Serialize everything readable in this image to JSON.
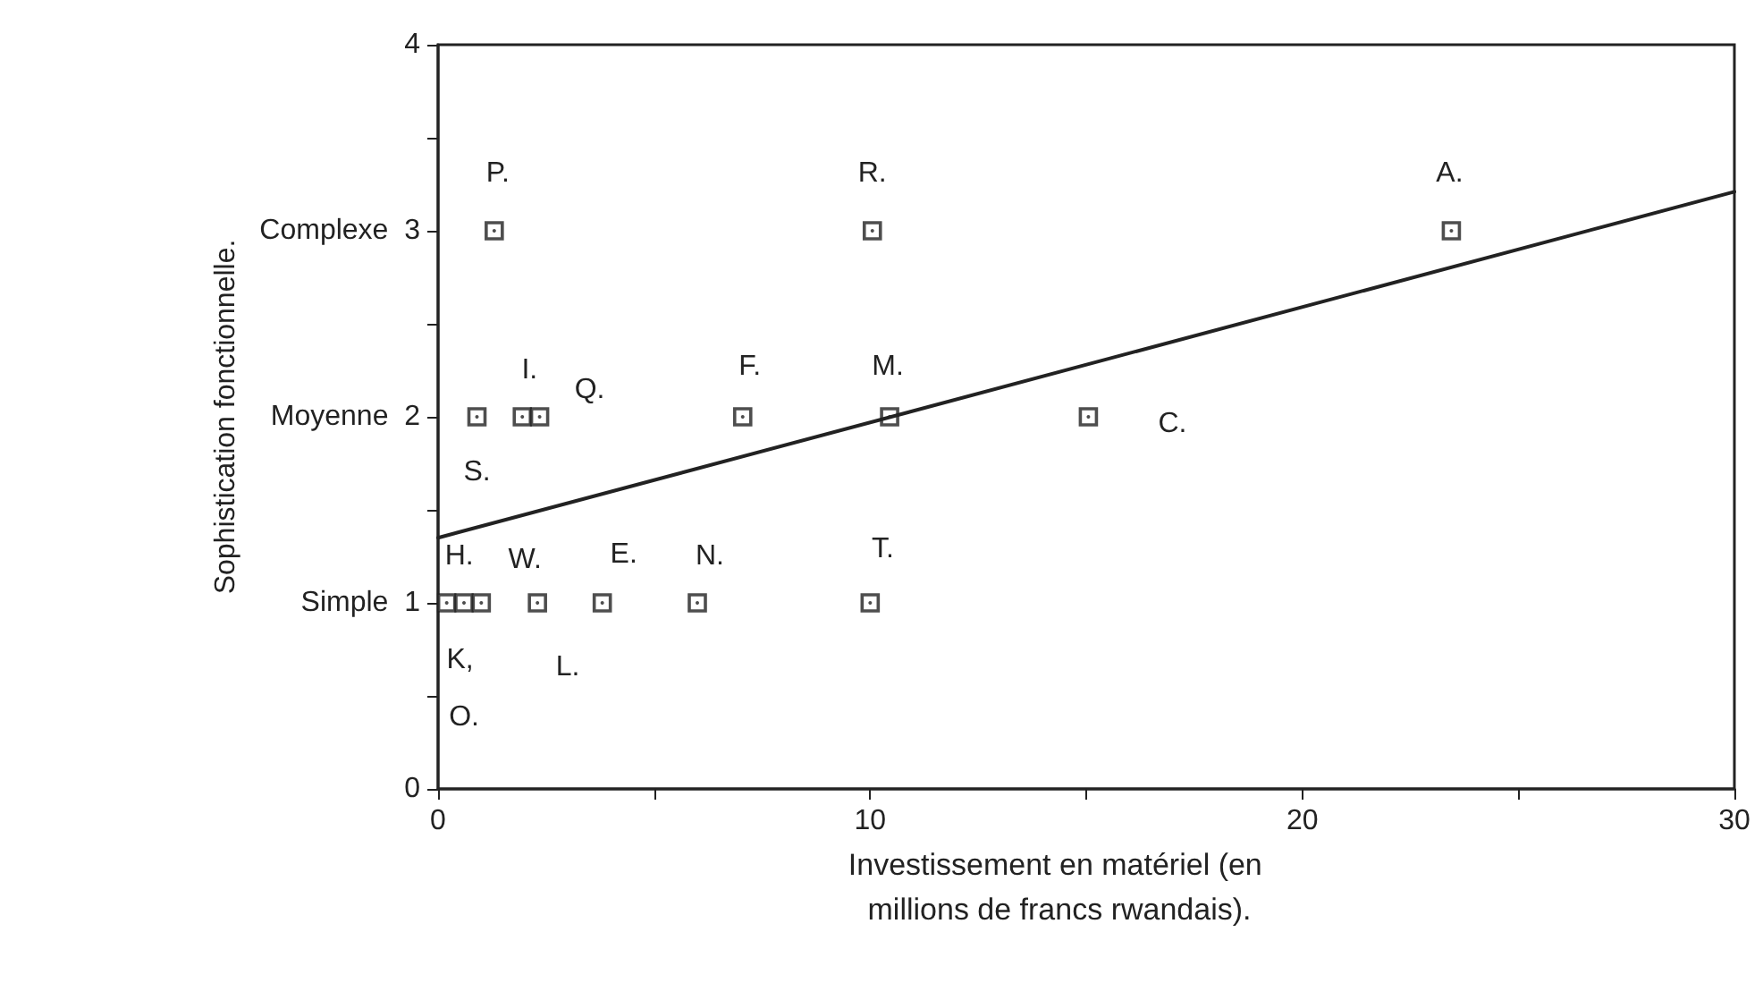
{
  "chart_data": {
    "type": "scatter",
    "xlabel": "Investissement en matériel (en millions de francs rwandais).",
    "ylabel": "Sophistication fonctionnelle.",
    "xlim": [
      0,
      30
    ],
    "ylim": [
      0,
      4
    ],
    "xticks": [
      0,
      {
        "value": 5,
        "label": null
      },
      10,
      {
        "value": 15,
        "label": null
      },
      20,
      {
        "value": 25,
        "label": null
      },
      30
    ],
    "yticks": [
      0,
      {
        "value": 0.5,
        "label": null
      },
      {
        "value": 1,
        "label": "Simple  1"
      },
      {
        "value": 1.5,
        "label": null
      },
      {
        "value": 2,
        "label": "Moyenne  2"
      },
      {
        "value": 2.5,
        "label": null
      },
      {
        "value": 3,
        "label": "Complexe  3"
      },
      {
        "value": 3.5,
        "label": null
      },
      4
    ],
    "grid": false,
    "marker": "square",
    "series": [
      {
        "color": "#222222",
        "x": [
          1.3,
          10.05,
          23.45,
          0.9,
          1.95,
          2.35,
          7.05,
          10.45,
          15.05,
          0.2,
          0.6,
          1.0,
          2.3,
          3.8,
          6.0,
          10.0
        ],
        "values": [
          3,
          3,
          3,
          2,
          2,
          2,
          2,
          2,
          2,
          1,
          1,
          1,
          1,
          1,
          1,
          1
        ]
      },
      {
        "type": "line",
        "color": "#222222",
        "marker": "none",
        "x": [
          0,
          30
        ],
        "values": [
          1.35,
          3.21
        ]
      }
    ],
    "annotations": [
      {
        "text": "P.",
        "x": 1.3,
        "y": 3
      },
      {
        "text": "R.",
        "x": 10.05,
        "y": 3
      },
      {
        "text": "A.",
        "x": 23.45,
        "y": 3
      },
      {
        "text": "I.",
        "x": 1.95,
        "y": 2
      },
      {
        "text": "Q.",
        "x": 2.35,
        "y": 2
      },
      {
        "text": "F.",
        "x": 7.05,
        "y": 2
      },
      {
        "text": "M.",
        "x": 10.45,
        "y": 2
      },
      {
        "text": "C.",
        "x": 15.05,
        "y": 2
      },
      {
        "text": "S.",
        "x": 0.9,
        "y": 2
      },
      {
        "text": "H.",
        "x": 0.2,
        "y": 1
      },
      {
        "text": "W.",
        "x": 2.3,
        "y": 1
      },
      {
        "text": "E.",
        "x": 3.8,
        "y": 1
      },
      {
        "text": "N.",
        "x": 6.0,
        "y": 1
      },
      {
        "text": "T.",
        "x": 10.0,
        "y": 1
      },
      {
        "text": "K, O.",
        "x": 0.6,
        "y": 1
      },
      {
        "text": "L.",
        "x": 2.3,
        "y": 1
      }
    ]
  }
}
